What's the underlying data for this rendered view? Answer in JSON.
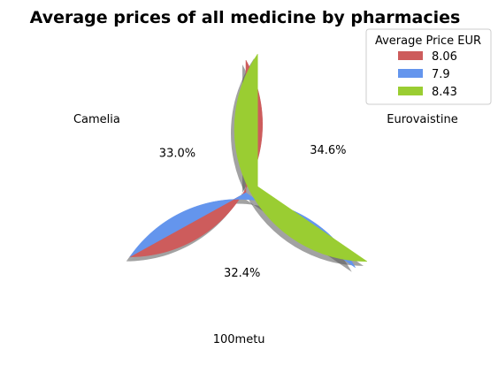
{
  "chart_data": {
    "type": "pie",
    "title": "Average prices of all medicine by pharmacies",
    "categories": [
      "Camelia",
      "100metu",
      "Eurovaistine"
    ],
    "values": [
      8.06,
      7.9,
      8.43
    ],
    "percent_labels": [
      "33.0%",
      "32.4%",
      "34.6%"
    ],
    "colors": [
      "#cd5c5c",
      "#6495ed",
      "#9acd32"
    ],
    "exploded": [
      false,
      false,
      true
    ],
    "shadow": true,
    "start_angle_deg": 90,
    "legend": {
      "title": "Average Price EUR",
      "entries": [
        "8.06",
        "7.9",
        "8.43"
      ],
      "placement": "top-right"
    }
  }
}
